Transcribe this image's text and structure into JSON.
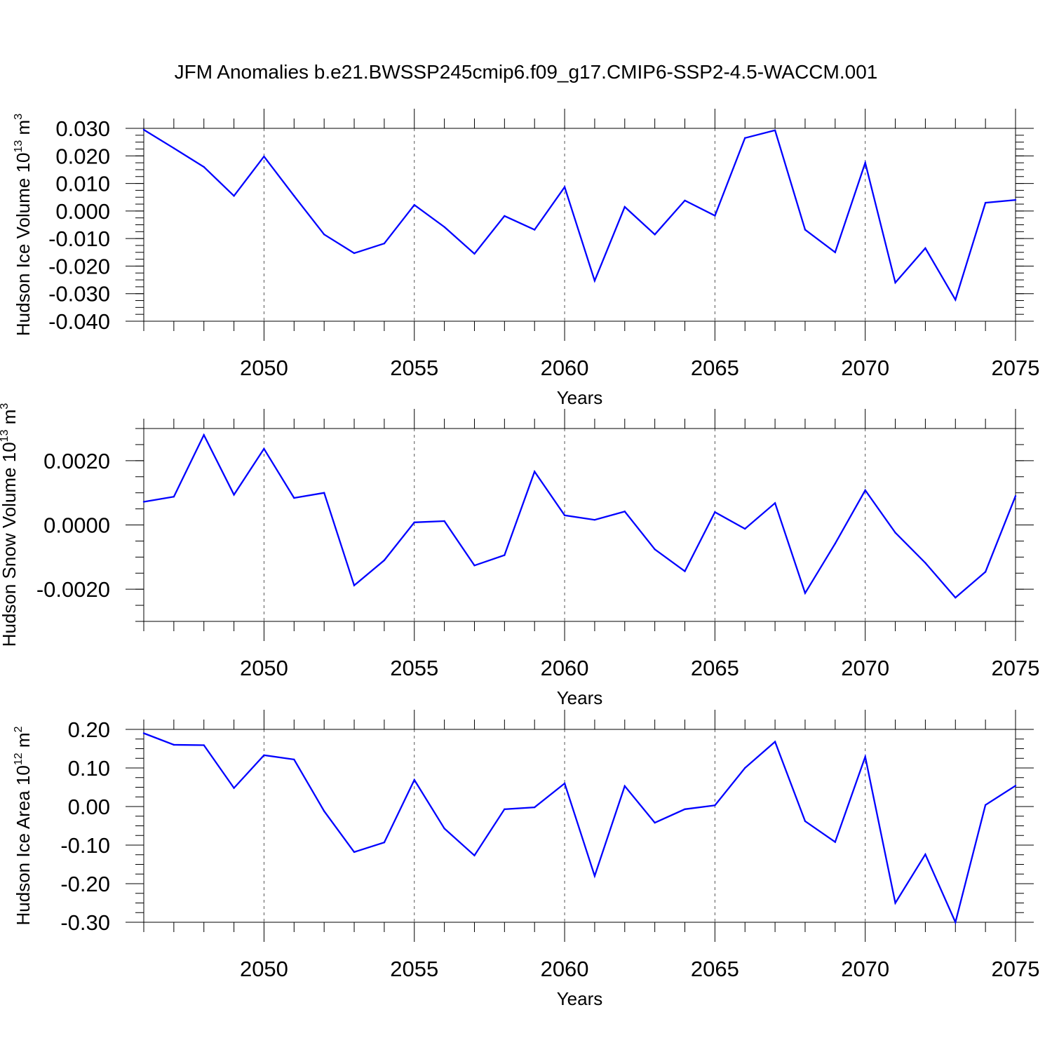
{
  "title": "JFM Anomalies b.e21.BWSSP245cmip6.f09_g17.CMIP6-SSP2-4.5-WACCM.001",
  "line_color": "#0000ff",
  "chart_data": [
    {
      "type": "line",
      "ylabel": "Hudson Ice Volume 10",
      "ylabel_sup": "13",
      "ylabel_unit": "m",
      "ylabel_unit_sup": "3",
      "xlabel": "Years",
      "xlim": [
        2046,
        2075
      ],
      "ylim": [
        -0.04,
        0.03
      ],
      "xticks": [
        2050,
        2055,
        2060,
        2065,
        2070,
        2075
      ],
      "xtick_labels": [
        "2050",
        "2055",
        "2060",
        "2065",
        "2070",
        "2075"
      ],
      "yticks": [
        0.03,
        0.02,
        0.01,
        0.0,
        -0.01,
        -0.02,
        -0.03,
        -0.04
      ],
      "ytick_labels": [
        "0.030",
        "0.020",
        "0.010",
        "0.000",
        "-0.010",
        "-0.020",
        "-0.030",
        "-0.040"
      ],
      "x": [
        2046,
        2047,
        2048,
        2049,
        2050,
        2051,
        2052,
        2053,
        2054,
        2055,
        2056,
        2057,
        2058,
        2059,
        2060,
        2061,
        2062,
        2063,
        2064,
        2065,
        2066,
        2067,
        2068,
        2069,
        2070,
        2071,
        2072,
        2073,
        2074,
        2075
      ],
      "values": [
        0.0295,
        0.0228,
        0.016,
        0.0055,
        0.0198,
        0.0055,
        -0.0085,
        -0.0153,
        -0.0118,
        0.0022,
        -0.0058,
        -0.0155,
        -0.0018,
        -0.0068,
        0.0087,
        -0.0253,
        0.0015,
        -0.0085,
        0.0038,
        -0.0017,
        0.0265,
        0.0293,
        -0.0068,
        -0.015,
        0.0175,
        -0.026,
        -0.0135,
        -0.0322,
        0.003,
        0.004
      ],
      "grid": "vertical dashed at major x ticks"
    },
    {
      "type": "line",
      "ylabel": "Hudson Snow Volume 10",
      "ylabel_sup": "13",
      "ylabel_unit": "m",
      "ylabel_unit_sup": "3",
      "xlabel": "Years",
      "xlim": [
        2046,
        2075
      ],
      "ylim": [
        -0.003,
        0.003
      ],
      "xticks": [
        2050,
        2055,
        2060,
        2065,
        2070,
        2075
      ],
      "xtick_labels": [
        "2050",
        "2055",
        "2060",
        "2065",
        "2070",
        "2075"
      ],
      "yticks": [
        0.002,
        0.0,
        -0.002
      ],
      "ytick_labels": [
        "0.0020",
        "0.0000",
        "-0.0020"
      ],
      "x": [
        2046,
        2047,
        2048,
        2049,
        2050,
        2051,
        2052,
        2053,
        2054,
        2055,
        2056,
        2057,
        2058,
        2059,
        2060,
        2061,
        2062,
        2063,
        2064,
        2065,
        2066,
        2067,
        2068,
        2069,
        2070,
        2071,
        2072,
        2073,
        2074,
        2075
      ],
      "values": [
        0.00072,
        0.00088,
        0.0028,
        0.00094,
        0.00237,
        0.00084,
        0.001,
        -0.00188,
        -0.0011,
        8e-05,
        0.00012,
        -0.00126,
        -0.00094,
        0.00166,
        0.0003,
        0.00016,
        0.00042,
        -0.00076,
        -0.00144,
        0.0004,
        -0.00012,
        0.00068,
        -0.00212,
        -0.00058,
        0.00108,
        -0.00024,
        -0.00118,
        -0.00226,
        -0.00146,
        0.0009
      ],
      "grid": "vertical dashed at major x ticks"
    },
    {
      "type": "line",
      "ylabel": "Hudson Ice Area 10",
      "ylabel_sup": "12",
      "ylabel_unit": "m",
      "ylabel_unit_sup": "2",
      "xlabel": "Years",
      "xlim": [
        2046,
        2075
      ],
      "ylim": [
        -0.3,
        0.2
      ],
      "xticks": [
        2050,
        2055,
        2060,
        2065,
        2070,
        2075
      ],
      "xtick_labels": [
        "2050",
        "2055",
        "2060",
        "2065",
        "2070",
        "2075"
      ],
      "yticks": [
        0.2,
        0.1,
        0.0,
        -0.1,
        -0.2,
        -0.3
      ],
      "ytick_labels": [
        "0.20",
        "0.10",
        "0.00",
        "-0.10",
        "-0.20",
        "-0.30"
      ],
      "x": [
        2046,
        2047,
        2048,
        2049,
        2050,
        2051,
        2052,
        2053,
        2054,
        2055,
        2056,
        2057,
        2058,
        2059,
        2060,
        2061,
        2062,
        2063,
        2064,
        2065,
        2066,
        2067,
        2068,
        2069,
        2070,
        2071,
        2072,
        2073,
        2074,
        2075
      ],
      "values": [
        0.19,
        0.16,
        0.159,
        0.048,
        0.133,
        0.122,
        -0.012,
        -0.118,
        -0.093,
        0.069,
        -0.057,
        -0.127,
        -0.007,
        -0.002,
        0.06,
        -0.18,
        0.053,
        -0.042,
        -0.007,
        0.003,
        0.1,
        0.168,
        -0.038,
        -0.092,
        0.129,
        -0.25,
        -0.124,
        -0.3,
        0.004,
        0.054
      ],
      "grid": "vertical dashed at major x ticks"
    }
  ]
}
